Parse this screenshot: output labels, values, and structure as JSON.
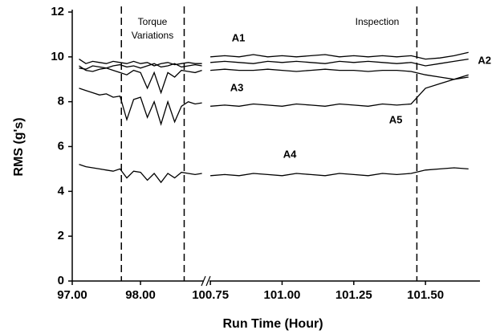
{
  "chart_data": {
    "type": "line",
    "ylabel": "RMS (g's)",
    "xlabel": "Run Time (Hour)",
    "ylim": [
      0,
      12
    ],
    "yticks": [
      0,
      2,
      4,
      6,
      8,
      10,
      12
    ],
    "x_segments": [
      {
        "xlim": [
          97.0,
          98.94
        ],
        "xticks": [
          {
            "value": 97,
            "label": "97.00"
          },
          {
            "value": 98,
            "label": "98.00"
          }
        ]
      },
      {
        "xlim": [
          100.744,
          101.69
        ],
        "xticks": [
          {
            "value": 100.75,
            "label": "100.75"
          },
          {
            "value": 101,
            "label": "101.00"
          },
          {
            "value": 101.25,
            "label": "101.25"
          },
          {
            "value": 101.5,
            "label": "101.50"
          }
        ]
      }
    ],
    "vlines": [
      97.72,
      98.64,
      101.47
    ],
    "annotations": [
      "Torque",
      "Variations",
      "Inspection"
    ],
    "x": [
      97.1,
      97.2,
      97.3,
      97.4,
      97.5,
      97.6,
      97.7,
      97.8,
      97.9,
      98.0,
      98.1,
      98.2,
      98.3,
      98.4,
      98.5,
      98.6,
      98.7,
      98.8,
      98.9,
      100.75,
      100.8,
      100.85,
      100.9,
      100.95,
      101.0,
      101.05,
      101.1,
      101.15,
      101.2,
      101.25,
      101.3,
      101.35,
      101.4,
      101.45,
      101.5,
      101.55,
      101.6,
      101.65
    ],
    "series": [
      {
        "name": "A1",
        "color": "#000000",
        "values": [
          9.9,
          9.7,
          9.8,
          9.75,
          9.7,
          9.8,
          9.75,
          9.7,
          9.8,
          9.7,
          9.75,
          9.6,
          9.7,
          9.75,
          9.65,
          9.7,
          9.75,
          9.7,
          9.7,
          10.0,
          10.05,
          10.0,
          10.1,
          10.0,
          10.05,
          10.0,
          10.05,
          10.1,
          10.0,
          10.05,
          10.0,
          10.05,
          10.0,
          10.05,
          9.9,
          9.95,
          10.05,
          10.2
        ]
      },
      {
        "name": "A2",
        "color": "#000000",
        "values": [
          9.5,
          9.45,
          9.6,
          9.55,
          9.5,
          9.6,
          9.65,
          9.55,
          9.6,
          9.5,
          9.6,
          9.7,
          9.55,
          9.6,
          9.7,
          9.55,
          9.6,
          9.65,
          9.6,
          9.75,
          9.8,
          9.75,
          9.7,
          9.8,
          9.75,
          9.8,
          9.75,
          9.7,
          9.8,
          9.75,
          9.8,
          9.75,
          9.7,
          9.75,
          9.6,
          9.7,
          9.8,
          9.9
        ]
      },
      {
        "name": "A3",
        "color": "#000000",
        "values": [
          8.6,
          8.5,
          8.4,
          8.3,
          8.35,
          8.2,
          8.25,
          7.2,
          8.1,
          8.2,
          7.3,
          8.0,
          7.0,
          8.0,
          7.1,
          7.8,
          8.0,
          7.9,
          7.95,
          7.8,
          7.85,
          7.8,
          7.9,
          7.85,
          7.8,
          7.9,
          7.85,
          7.8,
          7.9,
          7.85,
          7.8,
          7.9,
          7.85,
          7.9,
          8.6,
          8.8,
          9.0,
          9.2
        ]
      },
      {
        "name": "A4",
        "color": "#000000",
        "values": [
          5.2,
          5.1,
          5.05,
          5.0,
          4.95,
          4.9,
          5.0,
          4.6,
          4.9,
          4.85,
          4.5,
          4.8,
          4.4,
          4.8,
          4.6,
          4.85,
          4.8,
          4.75,
          4.8,
          4.7,
          4.75,
          4.7,
          4.8,
          4.75,
          4.7,
          4.8,
          4.75,
          4.7,
          4.8,
          4.75,
          4.7,
          4.8,
          4.75,
          4.8,
          4.95,
          5.0,
          5.05,
          5.0
        ]
      },
      {
        "name": "A5",
        "color": "#000000",
        "values": [
          9.6,
          9.4,
          9.35,
          9.45,
          9.5,
          9.4,
          9.3,
          9.2,
          9.4,
          9.3,
          8.6,
          9.3,
          8.4,
          9.3,
          9.1,
          9.4,
          9.35,
          9.3,
          9.4,
          9.4,
          9.45,
          9.4,
          9.4,
          9.45,
          9.4,
          9.35,
          9.4,
          9.45,
          9.4,
          9.4,
          9.35,
          9.4,
          9.4,
          9.35,
          9.2,
          9.1,
          9.0,
          9.1
        ]
      }
    ]
  }
}
